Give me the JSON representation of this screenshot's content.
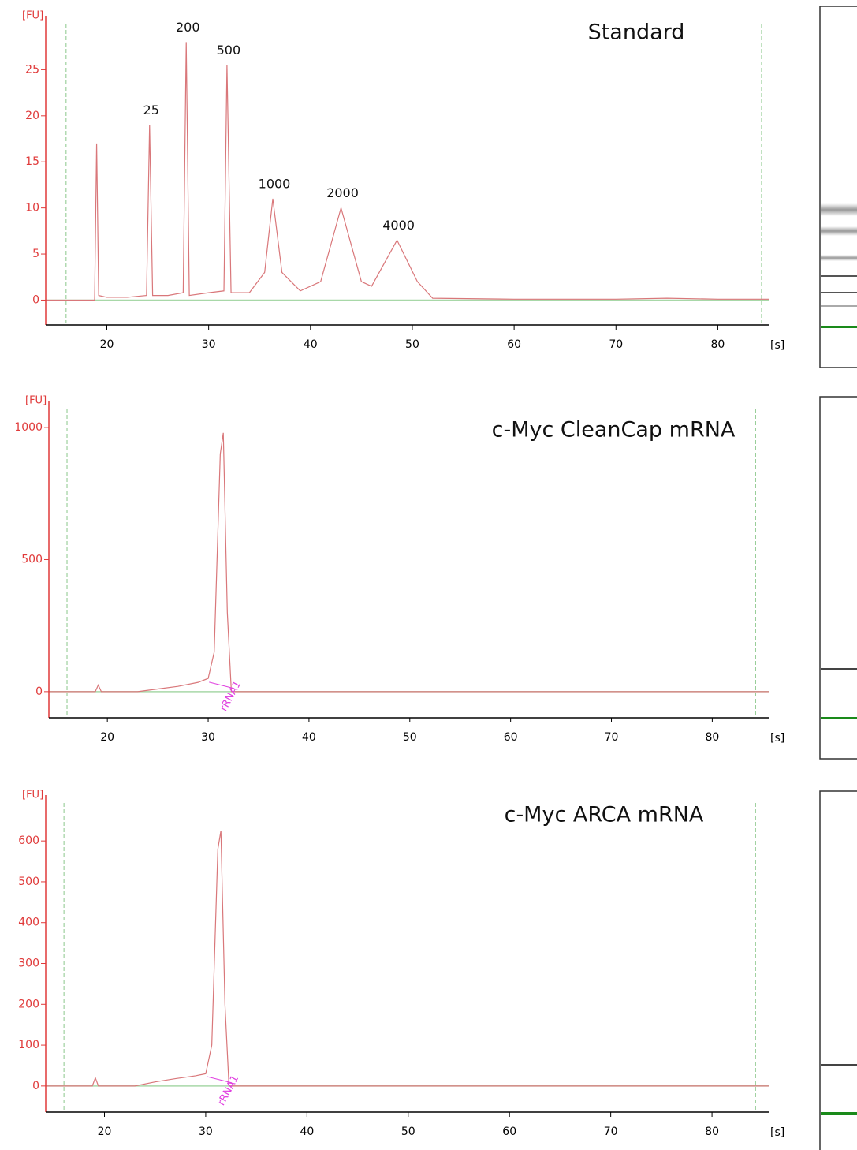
{
  "chart_data": [
    {
      "type": "line",
      "title": "Standard",
      "y_label": "[FU]",
      "x_label": "[s]",
      "xlim": [
        14,
        85
      ],
      "ylim": [
        -2.7,
        30
      ],
      "xticks": [
        20,
        30,
        40,
        50,
        60,
        70,
        80
      ],
      "yticks": [
        0,
        5,
        10,
        15,
        20,
        25
      ],
      "marker_lines": [
        16,
        84.3
      ],
      "color": "#d9777a",
      "x": [
        14,
        18.8,
        19,
        19.2,
        20,
        22,
        23.9,
        24.2,
        24.5,
        26,
        27.5,
        27.8,
        28.1,
        30,
        31.5,
        31.8,
        32.2,
        34,
        35.5,
        36.3,
        37.2,
        39,
        41,
        43,
        45,
        46,
        48.5,
        50.5,
        52,
        60,
        70,
        75,
        80,
        85
      ],
      "values": [
        0,
        0,
        17,
        0.5,
        0.3,
        0.3,
        0.5,
        19,
        0.5,
        0.5,
        0.8,
        28,
        0.5,
        0.8,
        1,
        25.5,
        0.8,
        0.8,
        3,
        11,
        3,
        1,
        2,
        10,
        2,
        1.5,
        6.5,
        2,
        0.2,
        0.1,
        0.1,
        0.2,
        0.1,
        0.1
      ],
      "annotations": [
        {
          "text": "25",
          "x": 24.2,
          "y": 19
        },
        {
          "text": "200",
          "x": 27.8,
          "y": 28
        },
        {
          "text": "500",
          "x": 31.8,
          "y": 25.5
        },
        {
          "text": "1000",
          "x": 36.3,
          "y": 11
        },
        {
          "text": "2000",
          "x": 43,
          "y": 10
        },
        {
          "text": "4000",
          "x": 48.5,
          "y": 6.5
        }
      ]
    },
    {
      "type": "line",
      "title": "c-Myc CleanCap mRNA",
      "y_label": "[FU]",
      "x_label": "[s]",
      "xlim": [
        14.2,
        85.6
      ],
      "ylim": [
        -99,
        1072
      ],
      "xticks": [
        20,
        30,
        40,
        50,
        60,
        70,
        80
      ],
      "yticks": [
        0,
        500,
        1000
      ],
      "marker_lines": [
        16,
        84.3
      ],
      "color": "#d9777a",
      "x": [
        14.2,
        18.8,
        19.1,
        19.4,
        23,
        25,
        27,
        29,
        30,
        30.6,
        31.2,
        31.5,
        31.9,
        32.3,
        85.6
      ],
      "values": [
        0,
        0,
        25,
        0,
        0,
        10,
        20,
        35,
        50,
        150,
        900,
        980,
        300,
        0,
        0
      ],
      "annotations": [
        {
          "text": "rRNA1",
          "x": 31.5,
          "y": 0
        }
      ]
    },
    {
      "type": "line",
      "title": "c-Myc ARCA mRNA",
      "y_label": "[FU]",
      "x_label": "[s]",
      "xlim": [
        14.2,
        85.6
      ],
      "ylim": [
        -64,
        693
      ],
      "xticks": [
        20,
        30,
        40,
        50,
        60,
        70,
        80
      ],
      "yticks": [
        0,
        100,
        200,
        300,
        400,
        500,
        600
      ],
      "marker_lines": [
        16,
        84.3
      ],
      "color": "#d9777a",
      "x": [
        14.2,
        18.8,
        19.1,
        19.4,
        23,
        25,
        27,
        29,
        30,
        30.6,
        31.2,
        31.5,
        31.9,
        32.3,
        85.6
      ],
      "values": [
        0,
        0,
        20,
        0,
        0,
        10,
        18,
        25,
        30,
        100,
        580,
        625,
        200,
        0,
        0
      ],
      "annotations": [
        {
          "text": "rRNA1",
          "x": 31.5,
          "y": 0
        }
      ]
    }
  ]
}
